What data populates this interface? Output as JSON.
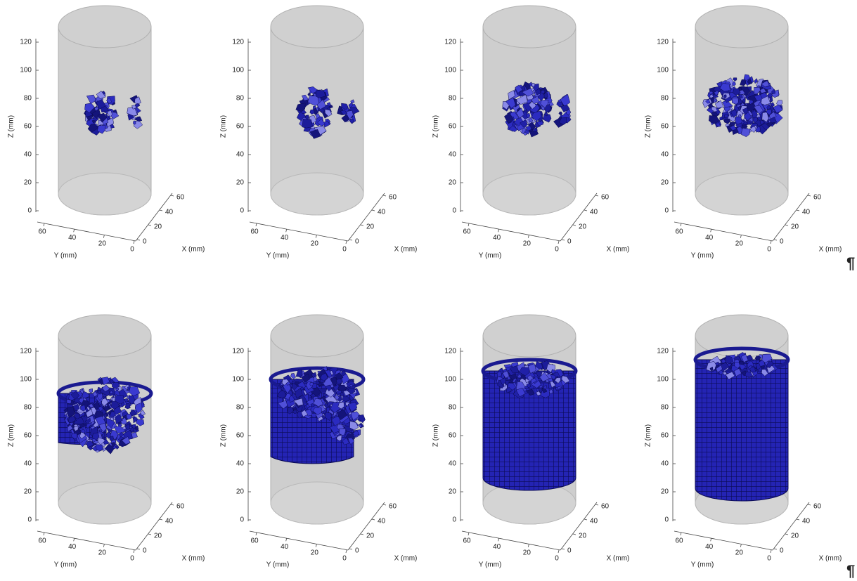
{
  "figure": {
    "z_label": "Z (mm)",
    "x_label": "X (mm)",
    "y_label": "Y (mm)",
    "z_ticks": [
      0,
      20,
      40,
      60,
      80,
      100,
      120
    ],
    "x_ticks": [
      0,
      20,
      40,
      60
    ],
    "y_ticks": [
      60,
      40,
      20,
      0
    ]
  },
  "paragraph_marks": [
    "¶",
    "¶"
  ]
}
